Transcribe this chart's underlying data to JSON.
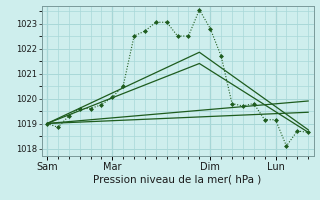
{
  "background_color": "#ceeeed",
  "grid_color": "#a8d8d8",
  "line_color": "#1e5c1e",
  "title": "Pression niveau de la mer( hPa )",
  "ylabel_ticks": [
    1018,
    1019,
    1020,
    1021,
    1022,
    1023
  ],
  "x_ticks_labels": [
    "Sam",
    "Mar",
    "Dim",
    "Lun"
  ],
  "x_ticks_pos": [
    0,
    6,
    15,
    21
  ],
  "dotted_series_x": [
    0,
    1,
    2,
    3,
    4,
    5,
    6,
    7,
    8,
    9,
    10,
    11,
    12,
    13,
    14,
    15,
    16,
    17,
    18,
    19,
    20,
    21,
    22,
    23,
    24
  ],
  "dotted_series_y": [
    1019.0,
    1018.85,
    1019.3,
    1019.6,
    1019.6,
    1019.75,
    1020.05,
    1020.5,
    1022.5,
    1022.7,
    1023.05,
    1023.05,
    1022.5,
    1022.5,
    1023.55,
    1022.8,
    1021.7,
    1019.8,
    1019.7,
    1019.8,
    1019.15,
    1019.15,
    1018.1,
    1018.7,
    1018.65
  ],
  "solid_series1_x": [
    0,
    14,
    24
  ],
  "solid_series1_y": [
    1019.0,
    1021.85,
    1018.75
  ],
  "solid_series2_x": [
    0,
    14,
    24
  ],
  "solid_series2_y": [
    1019.0,
    1021.4,
    1018.65
  ],
  "trend1_x": [
    0,
    24
  ],
  "trend1_y": [
    1019.0,
    1019.45
  ],
  "trend2_x": [
    0,
    24
  ],
  "trend2_y": [
    1019.0,
    1019.9
  ],
  "vline_x": [
    0,
    6,
    15,
    21
  ],
  "ylim": [
    1017.7,
    1023.7
  ],
  "xlim": [
    -0.5,
    24.5
  ]
}
